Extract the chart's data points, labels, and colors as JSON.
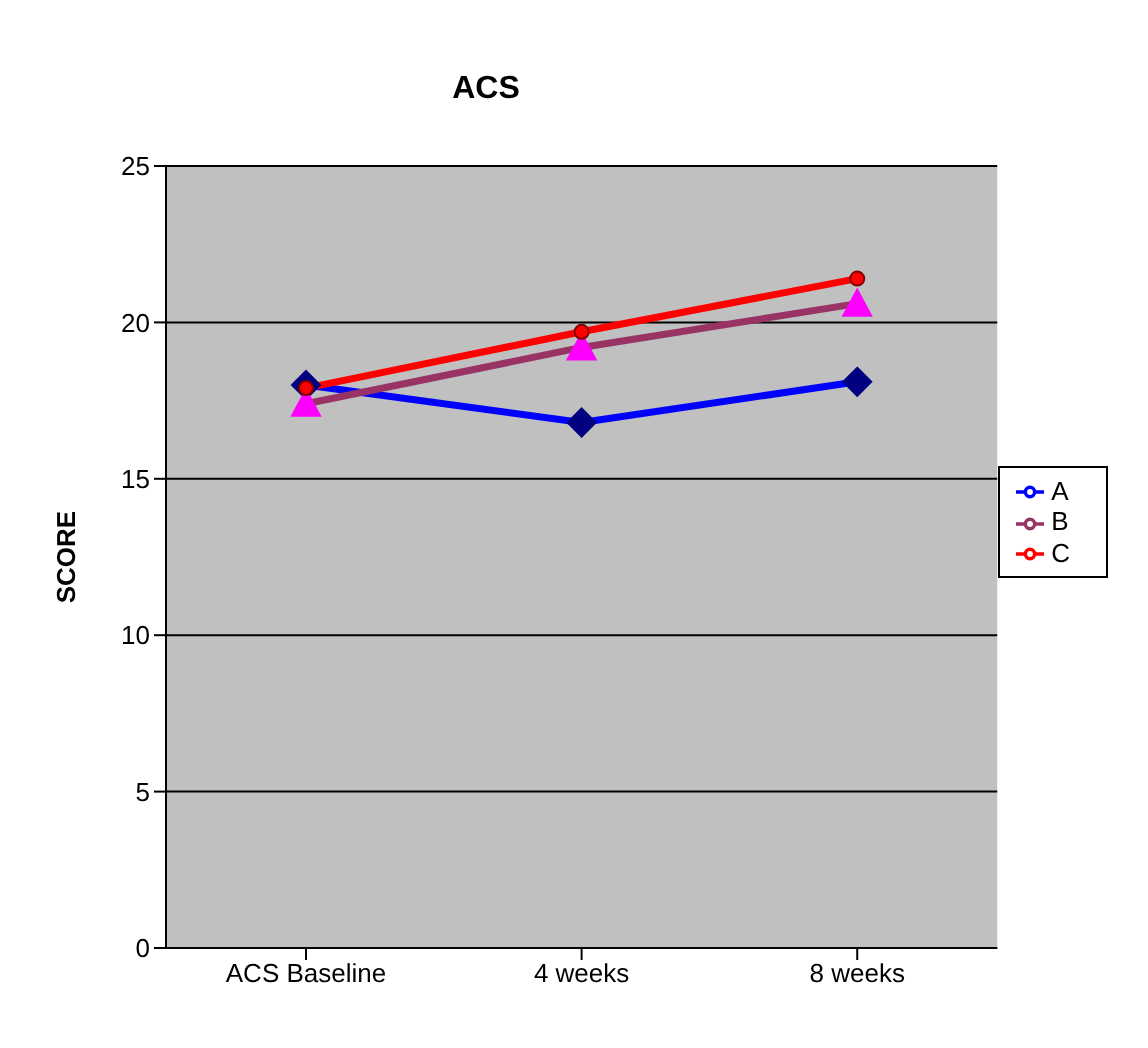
{
  "chart_data": {
    "type": "line",
    "title": "ACS",
    "ylabel": "SCORE",
    "categories": [
      "ACS Baseline",
      "4 weeks",
      "8 weeks"
    ],
    "series": [
      {
        "name": "A",
        "color": "#0000ff",
        "marker": "diamond",
        "values": [
          18.0,
          16.8,
          18.1
        ]
      },
      {
        "name": "B",
        "color": "#993366",
        "marker": "triangle",
        "values": [
          17.4,
          19.2,
          20.6
        ]
      },
      {
        "name": "C",
        "color": "#ff0000",
        "marker": "circle",
        "values": [
          17.9,
          19.7,
          21.4
        ]
      }
    ],
    "ylim": [
      0,
      25
    ],
    "yticks": [
      0,
      5,
      10,
      15,
      20,
      25
    ],
    "grid": "y",
    "legend": "right"
  }
}
